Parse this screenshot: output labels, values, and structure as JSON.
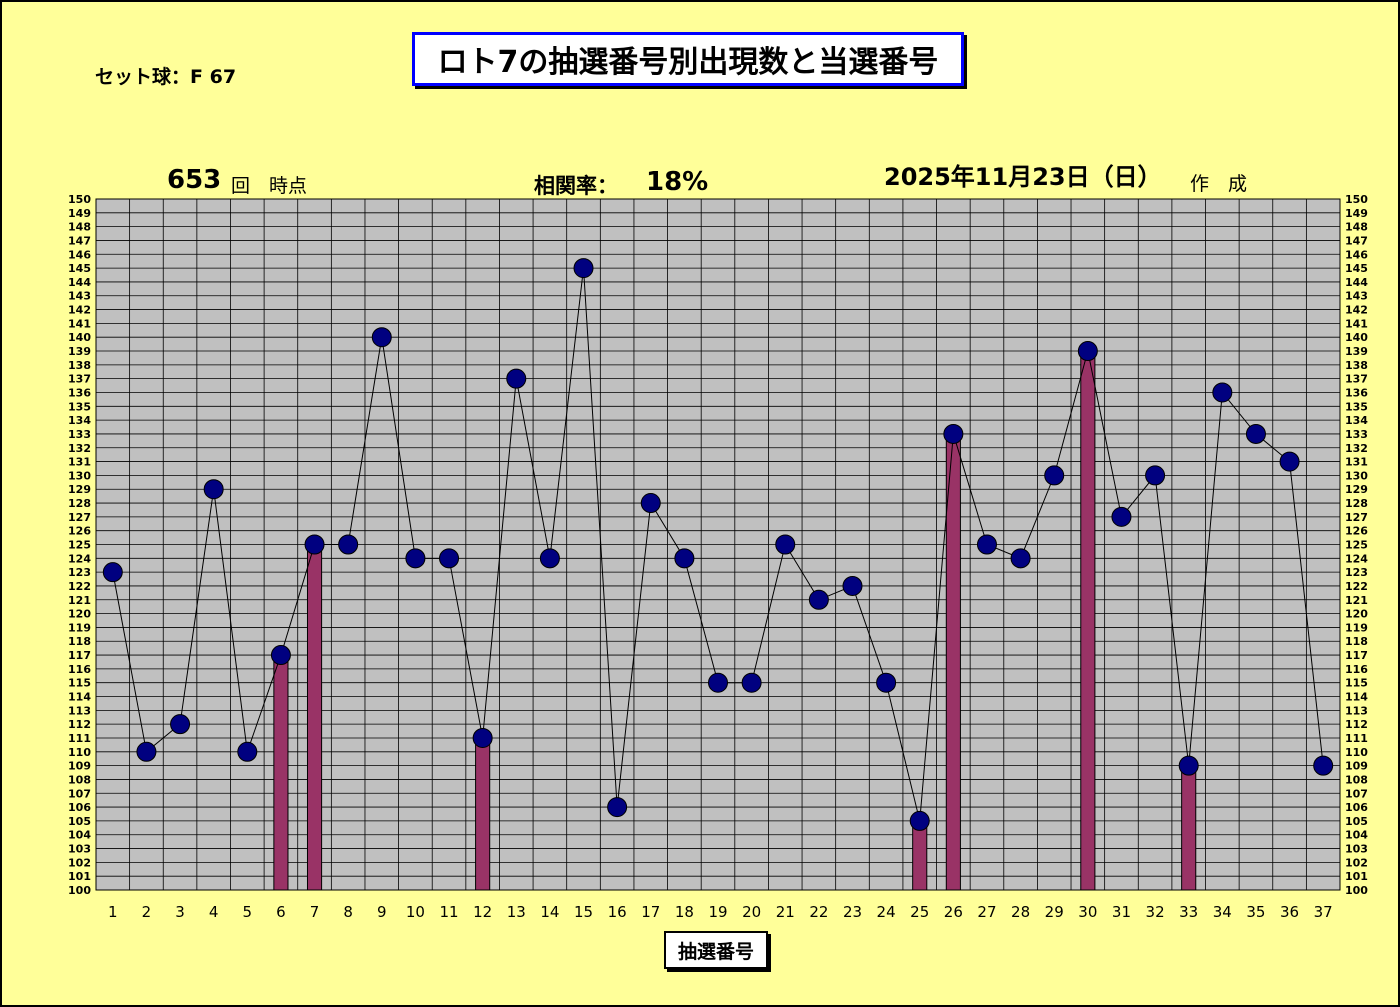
{
  "header": {
    "title": "ロト7の抽選番号別出現数と当選番号",
    "set_ball": "セット球：F 67",
    "draw_count": "653",
    "draw_suffix": "回　時点",
    "correlation_label": "相関率：",
    "correlation_value": "18%",
    "date": "2025年11月23日（日）",
    "date_suffix": "作　成"
  },
  "colors": {
    "background": "#ffff99",
    "plot_area": "#c0c0c0",
    "marker": "#000080",
    "bar": "#993366",
    "title_border": "#0000ff"
  },
  "chart_data": {
    "type": "bar",
    "xlabel": "抽選番号",
    "ylim": [
      100,
      150
    ],
    "grid": true,
    "categories": [
      "1",
      "2",
      "3",
      "4",
      "5",
      "6",
      "7",
      "8",
      "9",
      "10",
      "11",
      "12",
      "13",
      "14",
      "15",
      "16",
      "17",
      "18",
      "19",
      "20",
      "21",
      "22",
      "23",
      "24",
      "25",
      "26",
      "27",
      "28",
      "29",
      "30",
      "31",
      "32",
      "33",
      "34",
      "35",
      "36",
      "37"
    ],
    "series": [
      {
        "type": "line",
        "values": [
          123,
          110,
          112,
          129,
          110,
          117,
          125,
          125,
          140,
          124,
          124,
          111,
          137,
          124,
          145,
          106,
          128,
          124,
          115,
          115,
          125,
          121,
          122,
          115,
          105,
          133,
          125,
          124,
          130,
          139,
          127,
          130,
          109,
          136,
          133,
          131,
          109
        ]
      },
      {
        "type": "bar",
        "values": [
          null,
          null,
          null,
          null,
          null,
          117,
          125,
          null,
          null,
          null,
          null,
          111,
          null,
          null,
          null,
          null,
          null,
          null,
          null,
          null,
          null,
          null,
          null,
          null,
          105,
          133,
          null,
          null,
          null,
          139,
          null,
          null,
          109,
          null,
          null,
          null,
          null
        ]
      }
    ]
  }
}
